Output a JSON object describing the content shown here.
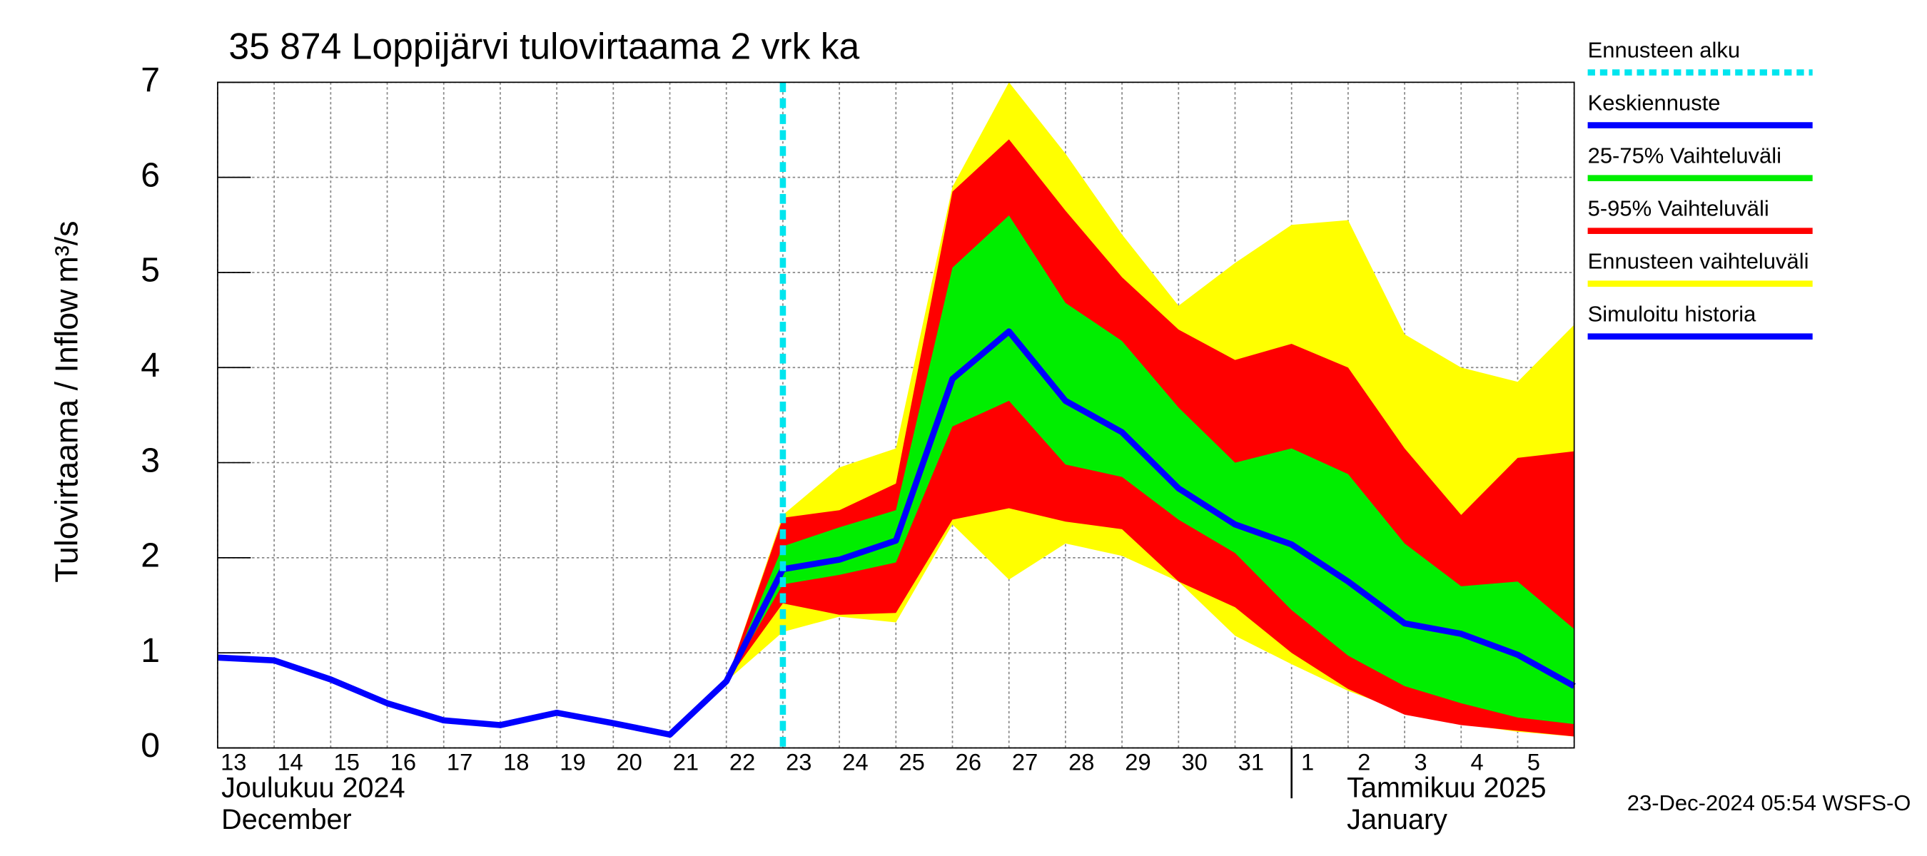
{
  "chart_data": {
    "type": "band-forecast",
    "title": "35 874 Loppijärvi tulovirtaama 2 vrk ka",
    "y_label": "Tulovirtaama / Inflow",
    "y_unit": "m³/s",
    "footer": "23-Dec-2024 05:54 WSFS-O",
    "categories": [
      "13",
      "14",
      "15",
      "16",
      "17",
      "18",
      "19",
      "20",
      "21",
      "22",
      "23",
      "24",
      "25",
      "26",
      "27",
      "28",
      "29",
      "30",
      "31",
      "1",
      "2",
      "3",
      "4",
      "5",
      null
    ],
    "month_labels": [
      [
        "Joulukuu  2024",
        "December"
      ],
      [
        "Tammikuu  2025",
        "January"
      ]
    ],
    "ylim": [
      0,
      7
    ],
    "yticks": [
      0,
      1,
      2,
      3,
      4,
      5,
      6,
      7
    ],
    "grid": true,
    "forecast_start": {
      "name": "Ennusteen alku",
      "color": "#00e5ee"
    },
    "bands": [
      {
        "name": "Ennusteen vaihteluväli",
        "color": "#ffff00",
        "upper": [
          null,
          null,
          null,
          null,
          null,
          null,
          null,
          null,
          null,
          0.7,
          2.45,
          2.95,
          3.15,
          5.9,
          7.0,
          6.25,
          5.4,
          4.65,
          5.1,
          5.5,
          5.55,
          4.35,
          4.0,
          3.85,
          4.45
        ],
        "lower": [
          null,
          null,
          null,
          null,
          null,
          null,
          null,
          null,
          null,
          0.7,
          1.22,
          1.38,
          1.32,
          2.35,
          1.77,
          2.15,
          2.02,
          1.75,
          1.18,
          0.88,
          0.6,
          0.38,
          0.25,
          0.17,
          0.12
        ]
      },
      {
        "name": "5-95% Vaihteluväli",
        "color": "#ff0000",
        "upper": [
          null,
          null,
          null,
          null,
          null,
          null,
          null,
          null,
          null,
          0.7,
          2.42,
          2.5,
          2.78,
          5.85,
          6.4,
          5.65,
          4.95,
          4.4,
          4.08,
          4.25,
          4.0,
          3.15,
          2.45,
          3.05,
          3.12
        ],
        "lower": [
          null,
          null,
          null,
          null,
          null,
          null,
          null,
          null,
          null,
          0.7,
          1.52,
          1.4,
          1.42,
          2.4,
          2.52,
          2.38,
          2.3,
          1.75,
          1.48,
          1.0,
          0.62,
          0.35,
          0.24,
          0.18,
          0.12
        ]
      },
      {
        "name": "25-75% Vaihteluväli",
        "color": "#00ee00",
        "upper": [
          null,
          null,
          null,
          null,
          null,
          null,
          null,
          null,
          null,
          0.7,
          2.12,
          2.32,
          2.5,
          5.05,
          5.6,
          4.68,
          4.28,
          3.58,
          3.0,
          3.15,
          2.88,
          2.15,
          1.7,
          1.75,
          1.25
        ],
        "lower": [
          null,
          null,
          null,
          null,
          null,
          null,
          null,
          null,
          null,
          0.7,
          1.72,
          1.82,
          1.95,
          3.38,
          3.65,
          2.98,
          2.85,
          2.4,
          2.05,
          1.45,
          0.97,
          0.65,
          0.47,
          0.32,
          0.25
        ]
      }
    ],
    "series": [
      {
        "name": "Simuloitu historia",
        "color": "#0000ff",
        "values": [
          0.95,
          0.92,
          0.72,
          0.47,
          0.29,
          0.24,
          0.37,
          0.26,
          0.14,
          0.7,
          1.88,
          null,
          null,
          null,
          null,
          null,
          null,
          null,
          null,
          null,
          null,
          null,
          null,
          null,
          null
        ]
      },
      {
        "name": "Keskiennuste",
        "color": "#0000ff",
        "values": [
          null,
          null,
          null,
          null,
          null,
          null,
          null,
          null,
          null,
          null,
          1.88,
          1.98,
          2.18,
          3.88,
          4.38,
          3.65,
          3.32,
          2.73,
          2.35,
          2.14,
          1.75,
          1.31,
          1.2,
          0.98,
          0.65
        ]
      }
    ]
  }
}
